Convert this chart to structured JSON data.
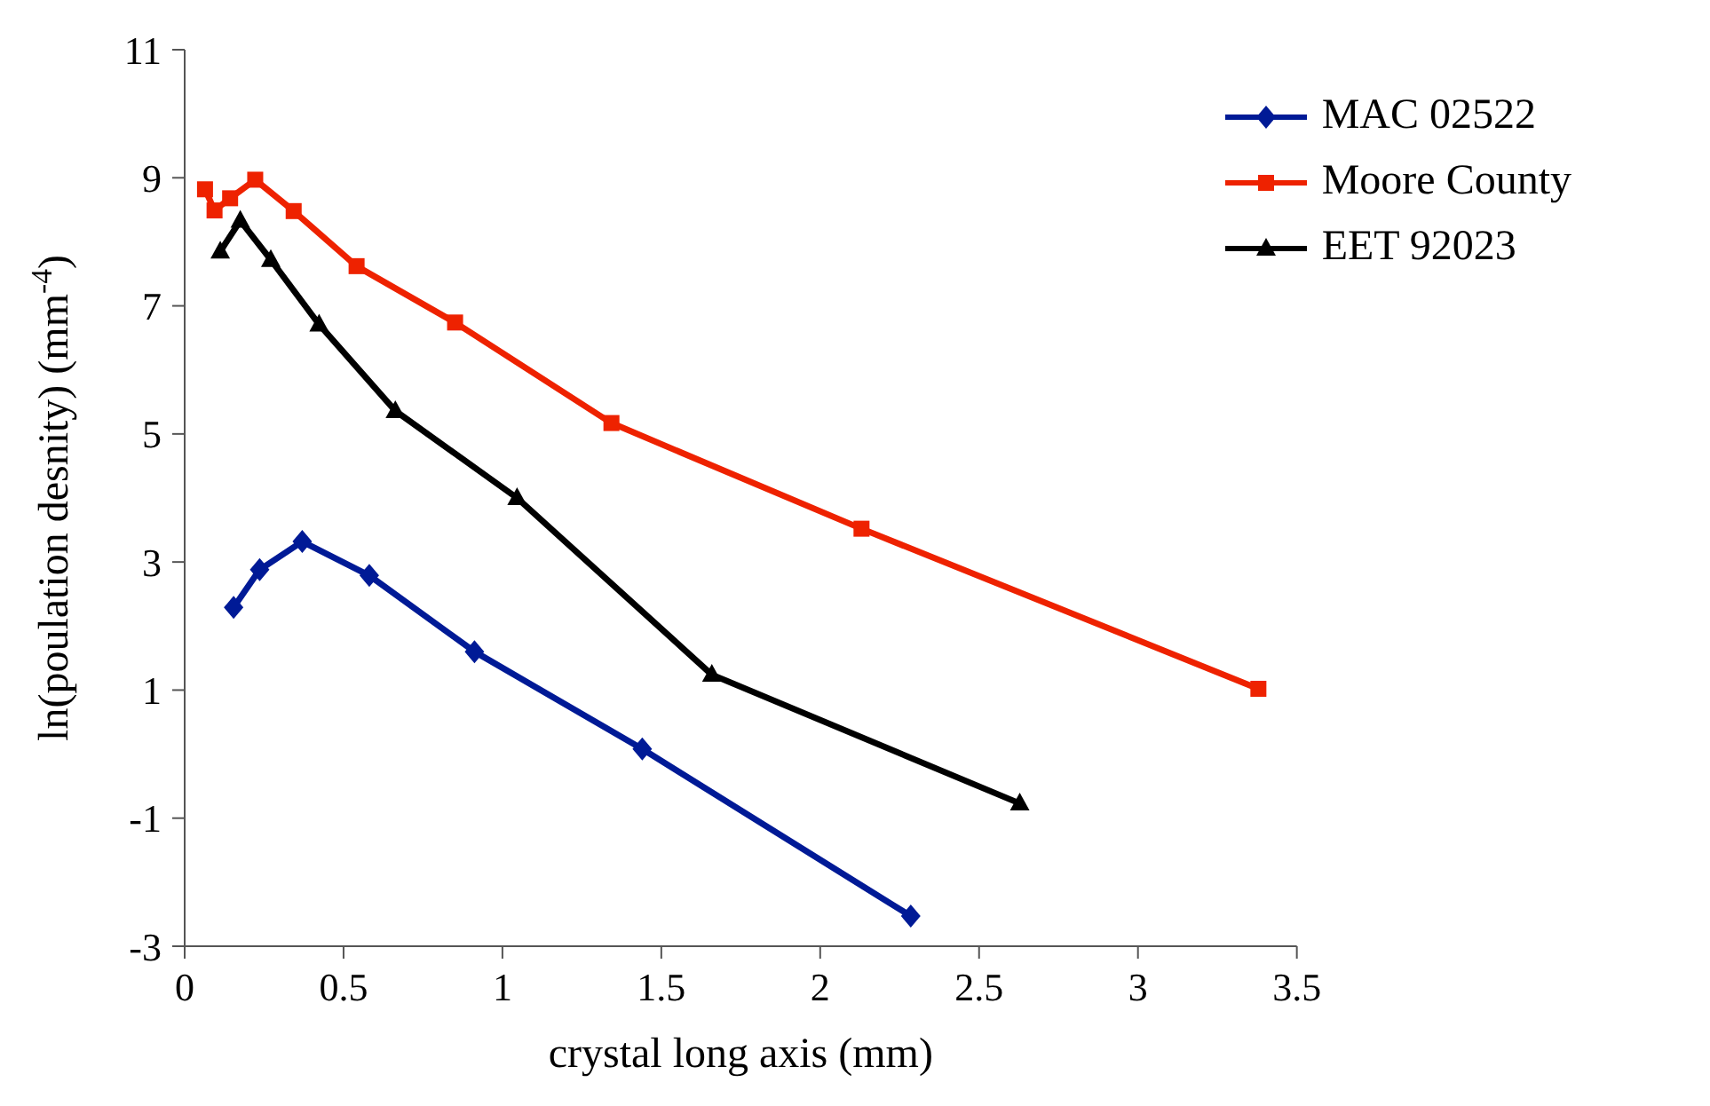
{
  "chart_data": {
    "type": "line",
    "xlabel": "crystal long axis (mm)",
    "ylabel": "ln(poulation desnity) (mm$^{-4}$)",
    "xlim": [
      0,
      3.5
    ],
    "xticks": [
      0,
      0.5,
      1,
      1.5,
      2,
      2.5,
      3,
      3.5
    ],
    "ylim": [
      -3,
      11
    ],
    "yticks": [
      -3,
      -1,
      1,
      3,
      5,
      7,
      9,
      11
    ],
    "grid": false,
    "legend": "top right",
    "series": [
      {
        "name": "MAC 02522",
        "color": "#001a96",
        "marker": "diamond",
        "x": [
          0.154,
          0.236,
          0.37,
          0.581,
          0.912,
          1.44,
          2.285
        ],
        "values": [
          2.29,
          2.88,
          3.32,
          2.79,
          1.6,
          0.08,
          -2.53
        ]
      },
      {
        "name": "Moore County",
        "color": "#ee2200",
        "marker": "square",
        "x": [
          0.064,
          0.094,
          0.143,
          0.222,
          0.343,
          0.541,
          0.851,
          1.343,
          2.13,
          3.379
        ],
        "values": [
          8.82,
          8.49,
          8.68,
          8.97,
          8.48,
          7.62,
          6.74,
          5.17,
          3.52,
          1.02
        ]
      },
      {
        "name": "EET 92023",
        "color": "#000000",
        "marker": "triangle",
        "x": [
          0.112,
          0.175,
          0.271,
          0.423,
          0.663,
          1.046,
          1.659,
          2.628
        ],
        "values": [
          7.85,
          8.33,
          7.72,
          6.71,
          5.36,
          4.0,
          1.24,
          -0.77
        ]
      }
    ]
  }
}
